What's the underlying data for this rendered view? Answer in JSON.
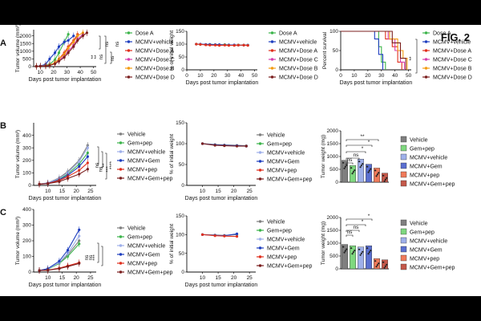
{
  "figure": {
    "title": "FIG. 2"
  },
  "panels": [
    {
      "letter": "A"
    },
    {
      "letter": "B"
    },
    {
      "letter": "C"
    }
  ],
  "colors": {
    "dose_a": "#3cb44b",
    "mcmv_vehicle": "#1f3fbf",
    "mcmv_dose_a": "#e0301e",
    "mcmv_dose_c": "#d63fae",
    "mcmv_dose_b": "#f39c12",
    "mcmv_dose_d": "#7b1f1f",
    "vehicle": "#7f7f7f",
    "gem_pep": "#7fd87f",
    "mcmv_veh_light": "#9fb0ea",
    "mcmv_gem": "#5a6fd0",
    "mcmv_pep": "#f07a5a",
    "mcmv_gem_pep": "#c4584a"
  },
  "chart_data": [
    {
      "id": "A-volume",
      "type": "line",
      "ylabel": "Tumor volume (mm³)",
      "xlabel": "Days post tumor implantation",
      "xlim": [
        5,
        52
      ],
      "ylim": [
        0,
        2400
      ],
      "xticks": [
        "10",
        "20",
        "30",
        "40",
        "50"
      ],
      "yticks": [
        "0",
        "500",
        "1000",
        "1500",
        "2000"
      ],
      "series": [
        {
          "name": "Dose A",
          "color": "#3cb44b",
          "x": [
            7,
            10,
            14,
            17,
            21,
            24,
            28,
            31
          ],
          "y": [
            20,
            30,
            80,
            150,
            450,
            900,
            1600,
            2100
          ]
        },
        {
          "name": "MCMV+vehicle",
          "color": "#1f3fbf",
          "x": [
            7,
            10,
            14,
            17,
            21,
            24,
            28,
            31,
            35
          ],
          "y": [
            20,
            40,
            150,
            500,
            900,
            1300,
            1600,
            1700,
            2000
          ]
        },
        {
          "name": "MCMV+Dose A",
          "color": "#e0301e",
          "x": [
            7,
            10,
            14,
            17,
            21,
            24,
            28,
            31,
            35,
            38
          ],
          "y": [
            20,
            30,
            60,
            100,
            250,
            500,
            900,
            1300,
            1700,
            2100
          ]
        },
        {
          "name": "MCMV+Dose C",
          "color": "#d63fae",
          "x": [
            7,
            10,
            14,
            17,
            21,
            24,
            28,
            31,
            35,
            38,
            42
          ],
          "y": [
            20,
            25,
            50,
            90,
            200,
            400,
            700,
            1000,
            1400,
            1800,
            2100
          ]
        },
        {
          "name": "MCMV+Dose B",
          "color": "#f39c12",
          "x": [
            7,
            10,
            14,
            17,
            21,
            24,
            28,
            31,
            35,
            38,
            42
          ],
          "y": [
            20,
            25,
            60,
            100,
            250,
            500,
            800,
            1200,
            1600,
            2000,
            2200
          ]
        },
        {
          "name": "MCMV+Dose D",
          "color": "#7b1f1f",
          "x": [
            7,
            10,
            14,
            17,
            21,
            24,
            28,
            31,
            35,
            38,
            42,
            45
          ],
          "y": [
            20,
            25,
            40,
            80,
            180,
            350,
            600,
            900,
            1300,
            1700,
            2000,
            2200
          ]
        }
      ],
      "annotations": [
        "ns",
        "ns",
        "ns",
        "ns",
        "**",
        "**"
      ]
    },
    {
      "id": "A-weight",
      "type": "line",
      "ylabel": "% of initial weight",
      "xlabel": "Days post tumor implantation",
      "xlim": [
        0,
        52
      ],
      "ylim": [
        0,
        150
      ],
      "xticks": [
        "0",
        "10",
        "20",
        "30",
        "40",
        "50"
      ],
      "yticks": [
        "0",
        "50",
        "100",
        "150"
      ],
      "series": [
        {
          "name": "Dose A",
          "color": "#3cb44b",
          "x": [
            7,
            10,
            14,
            17,
            21,
            24,
            28,
            31,
            35,
            38,
            42,
            45
          ],
          "y": [
            100,
            99,
            98,
            99,
            98,
            97,
            98,
            97,
            96,
            97,
            96,
            96
          ]
        },
        {
          "name": "MCMV+vehicle",
          "color": "#1f3fbf",
          "x": [
            7,
            10,
            14,
            17,
            21,
            24,
            28,
            31,
            35,
            38,
            42,
            45
          ],
          "y": [
            100,
            100,
            99,
            99,
            98,
            98,
            97,
            97,
            97,
            96,
            96,
            96
          ]
        },
        {
          "name": "MCMV+Dose A",
          "color": "#e0301e",
          "x": [
            7,
            10,
            14,
            17,
            21,
            24,
            28,
            31,
            35,
            38,
            42,
            45
          ],
          "y": [
            100,
            99,
            97,
            96,
            96,
            95,
            96,
            95,
            95,
            96,
            96,
            95
          ]
        }
      ],
      "legend": [
        "Dose A",
        "MCMV+vehicle",
        "MCMV+Dose A",
        "MCMV+Dose C",
        "MCMV+Dose B",
        "MCMV+Dose D"
      ]
    },
    {
      "id": "A-survival",
      "type": "line",
      "ylabel": "Percent survival",
      "xlabel": "Days post tumor implantation",
      "xlim": [
        0,
        52
      ],
      "ylim": [
        0,
        100
      ],
      "xticks": [
        "0",
        "10",
        "20",
        "30",
        "40",
        "50"
      ],
      "yticks": [
        "0",
        "50",
        "100"
      ],
      "series": [
        {
          "name": "Dose A",
          "color": "#3cb44b",
          "x": [
            0,
            28,
            28,
            30,
            30,
            33,
            33
          ],
          "y": [
            100,
            100,
            60,
            60,
            20,
            20,
            0
          ]
        },
        {
          "name": "MCMV+vehicle",
          "color": "#1f3fbf",
          "x": [
            0,
            25,
            25,
            28,
            28,
            31,
            31
          ],
          "y": [
            100,
            100,
            80,
            80,
            40,
            40,
            0
          ]
        },
        {
          "name": "MCMV+Dose A",
          "color": "#e0301e",
          "x": [
            0,
            33,
            33,
            38,
            38,
            42,
            42,
            45,
            45
          ],
          "y": [
            100,
            100,
            80,
            80,
            60,
            60,
            20,
            20,
            0
          ]
        },
        {
          "name": "MCMV+Dose C",
          "color": "#d63fae",
          "x": [
            0,
            35,
            35,
            40,
            40,
            44,
            44,
            47,
            47
          ],
          "y": [
            100,
            100,
            80,
            80,
            50,
            50,
            20,
            20,
            0
          ]
        },
        {
          "name": "MCMV+Dose B",
          "color": "#f39c12",
          "x": [
            0,
            36,
            36,
            42,
            42,
            46,
            46,
            49,
            49
          ],
          "y": [
            100,
            100,
            80,
            80,
            50,
            50,
            30,
            30,
            0
          ]
        },
        {
          "name": "MCMV+Dose D",
          "color": "#7b1f1f",
          "x": [
            0,
            38,
            38,
            44,
            44,
            48,
            48
          ],
          "y": [
            100,
            100,
            70,
            70,
            30,
            30,
            0
          ]
        }
      ],
      "annotations": [
        "**"
      ]
    },
    {
      "id": "B-volume",
      "type": "line",
      "ylabel": "Tumor volume (mm³)",
      "xlabel": "Days post tumor implantation",
      "xlim": [
        5,
        27
      ],
      "ylim": [
        0,
        500
      ],
      "xticks": [
        "10",
        "15",
        "20",
        "25"
      ],
      "yticks": [
        "0",
        "100",
        "200",
        "300",
        "400"
      ],
      "series": [
        {
          "name": "Vehicle",
          "color": "#7f7f7f",
          "x": [
            7,
            10,
            14,
            17,
            21,
            24
          ],
          "y": [
            10,
            20,
            60,
            110,
            200,
            320
          ]
        },
        {
          "name": "Gem+pep",
          "color": "#3cb44b",
          "x": [
            7,
            10,
            14,
            17,
            21,
            24
          ],
          "y": [
            10,
            18,
            50,
            90,
            170,
            260
          ]
        },
        {
          "name": "MCMV+vehicle",
          "color": "#9fb0ea",
          "x": [
            7,
            10,
            14,
            17,
            21,
            24
          ],
          "y": [
            10,
            20,
            55,
            100,
            190,
            300
          ]
        },
        {
          "name": "MCMV+Gem",
          "color": "#1f3fbf",
          "x": [
            7,
            10,
            14,
            17,
            21,
            24
          ],
          "y": [
            10,
            16,
            45,
            80,
            150,
            230
          ]
        },
        {
          "name": "MCMV+pep",
          "color": "#e0301e",
          "x": [
            7,
            10,
            14,
            17,
            21,
            24
          ],
          "y": [
            10,
            15,
            40,
            70,
            120,
            180
          ]
        },
        {
          "name": "MCMV+Gem+pep",
          "color": "#7b1f1f",
          "x": [
            7,
            10,
            14,
            17,
            21,
            24
          ],
          "y": [
            10,
            14,
            30,
            55,
            90,
            130
          ]
        }
      ],
      "annotations": [
        "ns",
        "ns",
        "**",
        "***",
        "****"
      ]
    },
    {
      "id": "B-weight",
      "type": "line",
      "ylabel": "% of initial weight",
      "xlabel": "Days post tumor implantation",
      "xlim": [
        5,
        27
      ],
      "ylim": [
        0,
        150
      ],
      "xticks": [
        "10",
        "15",
        "20",
        "25"
      ],
      "yticks": [
        "0",
        "50",
        "100",
        "150"
      ],
      "series": [
        {
          "name": "Vehicle",
          "color": "#7f7f7f",
          "x": [
            10,
            14,
            17,
            21,
            24
          ],
          "y": [
            100,
            98,
            97,
            96,
            95
          ]
        },
        {
          "name": "MCMV+Gem",
          "color": "#1f3fbf",
          "x": [
            10,
            14,
            17,
            21,
            24
          ],
          "y": [
            100,
            97,
            96,
            95,
            94
          ]
        },
        {
          "name": "MCMV+Gem+pep",
          "color": "#7b1f1f",
          "x": [
            10,
            14,
            17,
            21,
            24
          ],
          "y": [
            100,
            96,
            95,
            94,
            94
          ]
        }
      ],
      "legend": [
        "Vehicle",
        "Gem+pep",
        "MCMV+vehicle",
        "MCMV+Gem",
        "MCMV+pep",
        "MCMV+Gem+pep"
      ]
    },
    {
      "id": "B-weightmg",
      "type": "bar",
      "ylabel": "Tumor weight (mg)",
      "ylim": [
        0,
        2000
      ],
      "yticks": [
        "0",
        "500",
        "1000",
        "1500",
        "2000"
      ],
      "categories": [
        "Vehicle",
        "Gem+pep",
        "MCMV+vehicle",
        "MCMV+Gem",
        "MCMV+pep",
        "MCMV+Gem+pep"
      ],
      "values": [
        850,
        650,
        900,
        700,
        550,
        350
      ],
      "colors": [
        "#7f7f7f",
        "#7fd87f",
        "#9fb0ea",
        "#5a6fd0",
        "#f07a5a",
        "#c4584a"
      ],
      "annotations": [
        "ns",
        "ns",
        "*",
        "*",
        "**"
      ]
    },
    {
      "id": "C-volume",
      "type": "line",
      "ylabel": "Tumor volume (mm³)",
      "xlabel": "Days post tumor implantation",
      "xlim": [
        5,
        27
      ],
      "ylim": [
        0,
        400
      ],
      "xticks": [
        "10",
        "15",
        "20",
        "25"
      ],
      "yticks": [
        "0",
        "100",
        "200",
        "300",
        "400"
      ],
      "series": [
        {
          "name": "Vehicle",
          "color": "#7f7f7f",
          "x": [
            7,
            10,
            14,
            17,
            21
          ],
          "y": [
            10,
            20,
            60,
            110,
            200
          ]
        },
        {
          "name": "Gem+pep",
          "color": "#3cb44b",
          "x": [
            7,
            10,
            14,
            17,
            21
          ],
          "y": [
            10,
            18,
            55,
            100,
            180
          ]
        },
        {
          "name": "MCMV+vehicle",
          "color": "#9fb0ea",
          "x": [
            7,
            10,
            14,
            17,
            21
          ],
          "y": [
            10,
            20,
            60,
            120,
            230
          ]
        },
        {
          "name": "MCMV+Gem",
          "color": "#1f3fbf",
          "x": [
            7,
            10,
            14,
            17,
            21
          ],
          "y": [
            10,
            22,
            70,
            140,
            270
          ]
        },
        {
          "name": "MCMV+pep",
          "color": "#e0301e",
          "x": [
            7,
            10,
            14,
            17,
            21
          ],
          "y": [
            10,
            12,
            25,
            40,
            60
          ]
        },
        {
          "name": "MCMV+Gem+pep",
          "color": "#7b1f1f",
          "x": [
            7,
            10,
            14,
            17,
            21
          ],
          "y": [
            10,
            12,
            22,
            35,
            55
          ]
        }
      ],
      "annotations": [
        "ns",
        "ns",
        "***"
      ]
    },
    {
      "id": "C-weight",
      "type": "line",
      "ylabel": "% of initial weight",
      "xlabel": "Days post tumor implantation",
      "xlim": [
        5,
        27
      ],
      "ylim": [
        0,
        150
      ],
      "xticks": [
        "10",
        "15",
        "20",
        "25"
      ],
      "yticks": [
        "0",
        "50",
        "100",
        "150"
      ],
      "series": [
        {
          "name": "Vehicle",
          "color": "#7f7f7f",
          "x": [
            10,
            14,
            17,
            21
          ],
          "y": [
            100,
            99,
            98,
            100
          ]
        },
        {
          "name": "MCMV+Gem",
          "color": "#1f3fbf",
          "x": [
            10,
            14,
            17,
            21
          ],
          "y": [
            100,
            98,
            97,
            102
          ]
        },
        {
          "name": "MCMV+pep",
          "color": "#e0301e",
          "x": [
            10,
            14,
            17,
            21
          ],
          "y": [
            100,
            97,
            96,
            95
          ]
        }
      ],
      "legend": [
        "Vehicle",
        "Gem+pep",
        "MCMV+vehicle",
        "MCMV+Gem",
        "MCMV+pep",
        "MCMV+Gem+pep"
      ]
    },
    {
      "id": "C-weightmg",
      "type": "bar",
      "ylabel": "Tumor weight (mg)",
      "ylim": [
        0,
        2000
      ],
      "yticks": [
        "0",
        "500",
        "1000",
        "1500",
        "2000"
      ],
      "categories": [
        "Vehicle",
        "Gem+pep",
        "MCMV+vehicle",
        "MCMV+Gem",
        "MCMV+pep",
        "MCMV+Gem+pep"
      ],
      "values": [
        950,
        900,
        850,
        900,
        400,
        350
      ],
      "colors": [
        "#7f7f7f",
        "#7fd87f",
        "#9fb0ea",
        "#5a6fd0",
        "#f07a5a",
        "#c4584a"
      ],
      "annotations": [
        "ns",
        "ns",
        "*",
        "*"
      ]
    }
  ]
}
